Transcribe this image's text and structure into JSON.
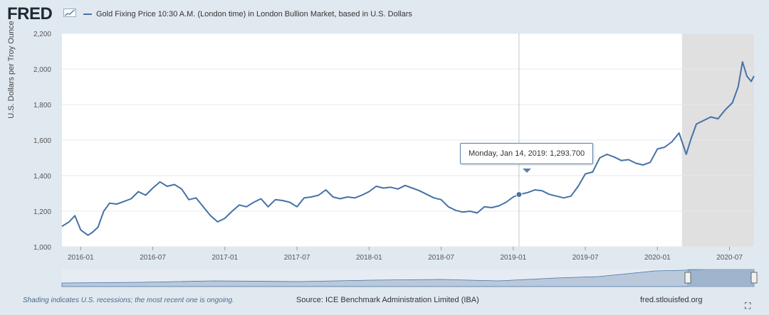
{
  "header": {
    "logo_text": "FRED",
    "logo_icon": "line-chart-icon",
    "legend_label": "Gold Fixing Price 10:30 A.M. (London time) in London Bullion Market, based in U.S. Dollars"
  },
  "tooltip": {
    "date": "Monday, Jan 14, 2019:",
    "value": "1,293.700"
  },
  "footer": {
    "recession_note": "Shading indicates U.S. recessions; the most recent one is ongoing.",
    "source": "Source: ICE Benchmark Administration Limited (IBA)",
    "site": "fred.stlouisfed.org"
  },
  "colors": {
    "series": "#4572a7",
    "recession_shading": "#e0e0e0",
    "plot_background": "#ffffff",
    "page_background": "#e1e9f0"
  },
  "chart_data": {
    "type": "line",
    "title": "Gold Fixing Price 10:30 A.M. (London time) in London Bullion Market, based in U.S. Dollars",
    "xlabel": "",
    "ylabel": "U.S. Dollars per Troy Ounce",
    "ylim": [
      1000,
      2200
    ],
    "yticks": [
      1000,
      1200,
      1400,
      1600,
      1800,
      2000,
      2200
    ],
    "ytick_labels": [
      "1,000",
      "1,200",
      "1,400",
      "1,600",
      "1,800",
      "2,000",
      "2,200"
    ],
    "xlim": [
      2015.87,
      2020.67
    ],
    "xticks": [
      2016.0,
      2016.5,
      2017.0,
      2017.5,
      2018.0,
      2018.5,
      2019.0,
      2019.5,
      2020.0,
      2020.5
    ],
    "xtick_labels": [
      "2016-01",
      "2016-07",
      "2017-01",
      "2017-07",
      "2018-01",
      "2018-07",
      "2019-01",
      "2019-07",
      "2020-01",
      "2020-07"
    ],
    "recession_shading": [
      2020.17,
      2020.67
    ],
    "hover": {
      "x": 2019.04,
      "y": 1293.7
    },
    "series": [
      {
        "name": "Gold Fixing Price 10:30 A.M. (London time)",
        "x": [
          2015.87,
          2015.92,
          2015.96,
          2016.0,
          2016.05,
          2016.08,
          2016.12,
          2016.16,
          2016.2,
          2016.25,
          2016.3,
          2016.35,
          2016.4,
          2016.45,
          2016.5,
          2016.55,
          2016.6,
          2016.65,
          2016.7,
          2016.75,
          2016.8,
          2016.85,
          2016.9,
          2016.95,
          2017.0,
          2017.05,
          2017.1,
          2017.15,
          2017.2,
          2017.25,
          2017.3,
          2017.35,
          2017.4,
          2017.45,
          2017.5,
          2017.55,
          2017.6,
          2017.65,
          2017.7,
          2017.75,
          2017.8,
          2017.85,
          2017.9,
          2017.95,
          2018.0,
          2018.05,
          2018.1,
          2018.15,
          2018.2,
          2018.25,
          2018.3,
          2018.35,
          2018.4,
          2018.45,
          2018.5,
          2018.55,
          2018.6,
          2018.65,
          2018.7,
          2018.75,
          2018.8,
          2018.85,
          2018.9,
          2018.95,
          2019.0,
          2019.04,
          2019.1,
          2019.15,
          2019.2,
          2019.25,
          2019.3,
          2019.35,
          2019.4,
          2019.45,
          2019.5,
          2019.55,
          2019.6,
          2019.65,
          2019.7,
          2019.75,
          2019.8,
          2019.85,
          2019.9,
          2019.95,
          2020.0,
          2020.05,
          2020.1,
          2020.15,
          2020.2,
          2020.23,
          2020.27,
          2020.32,
          2020.37,
          2020.42,
          2020.47,
          2020.52,
          2020.56,
          2020.59,
          2020.62,
          2020.65,
          2020.67
        ],
        "values": [
          1115,
          1140,
          1175,
          1095,
          1065,
          1080,
          1110,
          1200,
          1245,
          1240,
          1255,
          1270,
          1310,
          1290,
          1330,
          1365,
          1340,
          1350,
          1325,
          1265,
          1275,
          1225,
          1175,
          1140,
          1160,
          1200,
          1235,
          1225,
          1250,
          1270,
          1225,
          1265,
          1260,
          1250,
          1225,
          1275,
          1280,
          1290,
          1320,
          1280,
          1270,
          1280,
          1275,
          1290,
          1310,
          1340,
          1330,
          1335,
          1325,
          1345,
          1330,
          1315,
          1295,
          1275,
          1265,
          1225,
          1205,
          1195,
          1200,
          1190,
          1225,
          1220,
          1230,
          1250,
          1280,
          1293.7,
          1305,
          1320,
          1315,
          1295,
          1285,
          1275,
          1285,
          1340,
          1410,
          1420,
          1500,
          1520,
          1505,
          1485,
          1490,
          1470,
          1460,
          1475,
          1550,
          1560,
          1590,
          1640,
          1520,
          1600,
          1690,
          1710,
          1730,
          1720,
          1770,
          1810,
          1900,
          2040,
          1960,
          1930,
          1960
        ]
      }
    ]
  }
}
